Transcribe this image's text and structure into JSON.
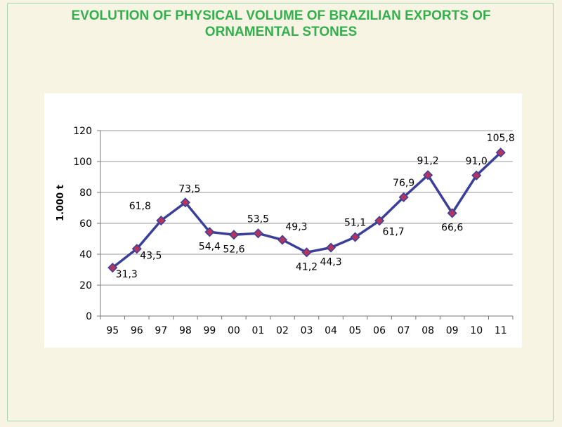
{
  "chart_data": {
    "type": "line",
    "title_line1": "EVOLUTION OF  PHYSICAL VOLUME OF BRAZILIAN EXPORTS OF",
    "title_line2": "ORNAMENTAL STONES",
    "ylabel": "1.000 t",
    "xlabel": "",
    "categories": [
      "95",
      "96",
      "97",
      "98",
      "99",
      "00",
      "01",
      "02",
      "03",
      "04",
      "05",
      "06",
      "07",
      "08",
      "09",
      "10",
      "11"
    ],
    "values": [
      31.3,
      43.5,
      61.8,
      73.5,
      54.4,
      52.6,
      53.5,
      49.3,
      41.2,
      44.3,
      51.1,
      61.7,
      76.9,
      91.2,
      66.6,
      91.0,
      105.8
    ],
    "data_labels": [
      "31,3",
      "43,5",
      "61,8",
      "73,5",
      "54,4",
      "52,6",
      "53,5",
      "49,3",
      "41,2",
      "44,3",
      "51,1",
      "61,7",
      "76,9",
      "91,2",
      "66,6",
      "91,0",
      "105,8"
    ],
    "label_positions": [
      "right-below",
      "right-below",
      "above-left",
      "above-right",
      "below",
      "below",
      "above",
      "right-above",
      "below",
      "below",
      "above",
      "below-right",
      "above",
      "above",
      "below",
      "above",
      "above"
    ],
    "ylim": [
      0,
      120
    ],
    "yticks": [
      0,
      20,
      40,
      60,
      80,
      100,
      120
    ],
    "grid": true,
    "legend": "none",
    "colors": {
      "line": "#3b3f98",
      "marker": "#b3355f",
      "grid": "#9a9a9a",
      "title": "#33b04e"
    }
  }
}
